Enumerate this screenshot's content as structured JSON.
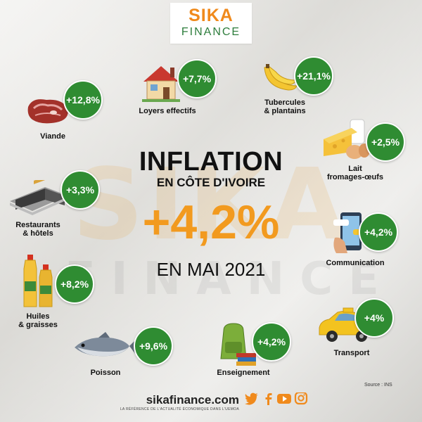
{
  "logo": {
    "line1": "SIKA",
    "line2": "FINANCE"
  },
  "title": {
    "line1": "INFLATION",
    "line2": "EN CÔTE D'IVOIRE",
    "value": "+4,2%",
    "line4": "EN MAI 2021"
  },
  "categories": [
    {
      "label": "Viande",
      "value": "+12,8%"
    },
    {
      "label": "Loyers effectifs",
      "value": "+7,7%"
    },
    {
      "label": "Tubercules\n& plantains",
      "value": "+21,1%"
    },
    {
      "label": "Lait\nfromages-œufs",
      "value": "+2,5%"
    },
    {
      "label": "Restaurants\n& hôtels",
      "value": "+3,3%"
    },
    {
      "label": "Communication",
      "value": "+4,2%"
    },
    {
      "label": "Huiles\n& graisses",
      "value": "+8,2%"
    },
    {
      "label": "Transport",
      "value": "+4%"
    },
    {
      "label": "Poisson",
      "value": "+9,6%"
    },
    {
      "label": "Enseignement",
      "value": "+4,2%"
    }
  ],
  "footer": {
    "site": "sikafinance.com",
    "tagline": "LA RÉFÉRENCE DE L'ACTUALITÉ ÉCONOMIQUE DANS L'UEMOA",
    "source": "Source : INS"
  },
  "watermark": {
    "big": "SIKA",
    "small": "FINANCE"
  },
  "colors": {
    "badge": "#2f8c32",
    "accent": "#f29a1f",
    "brand_green": "#2d7d3c",
    "brand_orange": "#f08a1c"
  },
  "icons": [
    "twitter-icon",
    "facebook-icon",
    "youtube-icon",
    "instagram-icon"
  ]
}
